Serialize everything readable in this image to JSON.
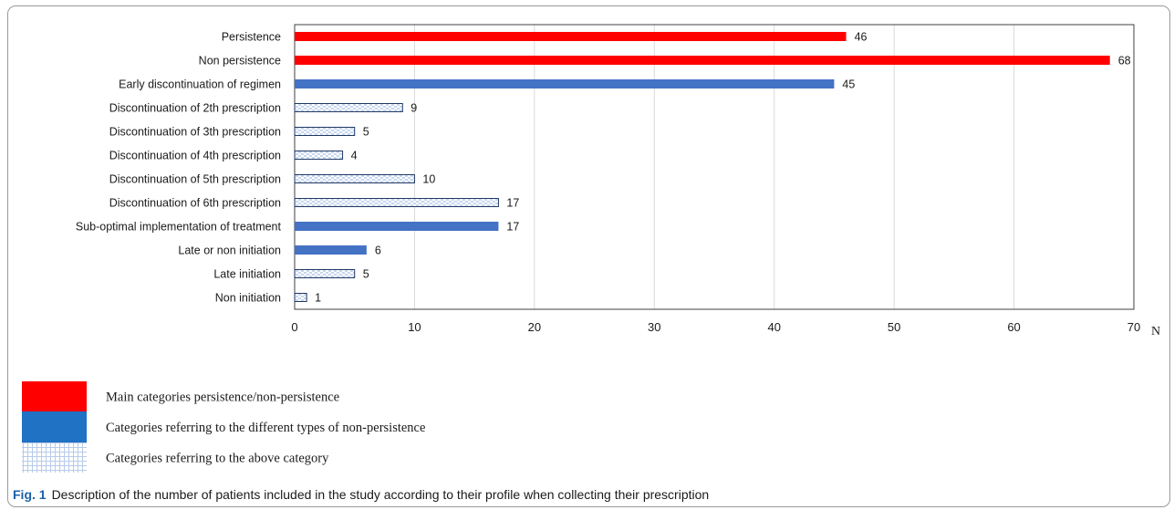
{
  "chart_data": {
    "type": "bar",
    "orientation": "horizontal",
    "categories": [
      "Persistence",
      "Non persistence",
      "Early discontinuation of regimen",
      "Discontinuation of 2th prescription",
      "Discontinuation of 3th prescription",
      "Discontinuation of 4th prescription",
      "Discontinuation of 5th prescription",
      "Discontinuation of 6th prescription",
      "Sub-optimal implementation of treatment",
      "Late or non initiation",
      "Late initiation",
      "Non initiation"
    ],
    "values": [
      46,
      68,
      45,
      9,
      5,
      4,
      10,
      17,
      17,
      6,
      5,
      1
    ],
    "bar_groups": [
      "main",
      "main",
      "type",
      "sub",
      "sub",
      "sub",
      "sub",
      "sub",
      "type",
      "type",
      "sub",
      "sub"
    ],
    "xlim": [
      0,
      70
    ],
    "xticks": [
      "0",
      "10",
      "20",
      "30",
      "40",
      "50",
      "60",
      "70"
    ],
    "xlabel": "N",
    "ylabel": "",
    "grid": "vertical",
    "legend": [
      {
        "group": "main",
        "label": "Main categories persistence/non-persistence"
      },
      {
        "group": "type",
        "label": "Categories referring to the different types of non-persistence"
      },
      {
        "group": "sub",
        "label": "Categories referring to the above category"
      }
    ],
    "legend_placement": "bottom-left"
  },
  "colors": {
    "main": "#ff0000",
    "type": "#4472c4",
    "sub_border": "#1f3864",
    "sub_pattern": "#c7d7ef",
    "grid": "#d9d9d9",
    "caption_label": "#1c62a8"
  },
  "caption": {
    "label": "Fig. 1",
    "text": "Description of the number of patients included in the study according to their profile when collecting their prescription"
  }
}
